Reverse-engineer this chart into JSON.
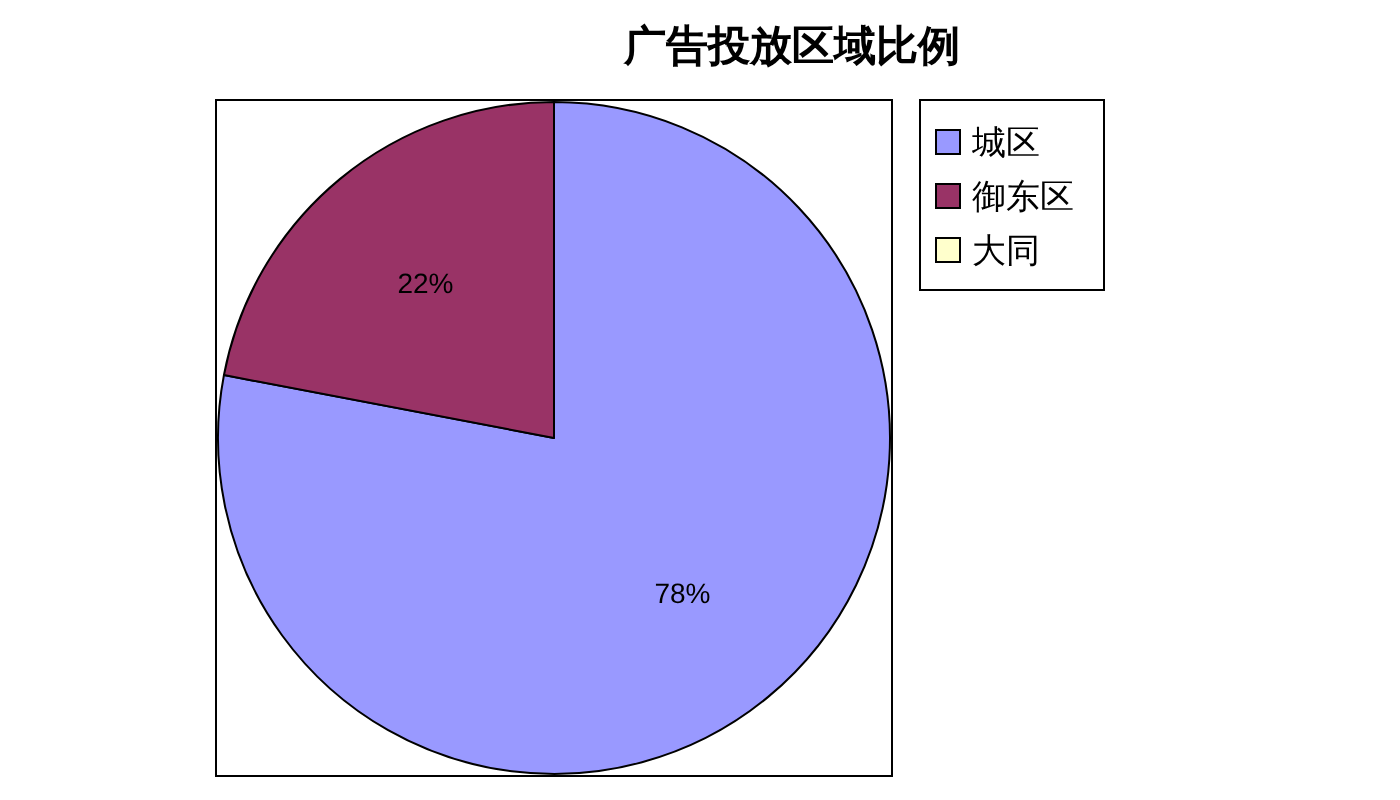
{
  "chart_data": {
    "type": "pie",
    "title": "广告投放区域比例",
    "categories": [
      "城区",
      "御东区",
      "大同"
    ],
    "values": [
      78,
      22,
      0
    ],
    "colors": [
      "#9999ff",
      "#993366",
      "#ffffcc"
    ],
    "value_labels": [
      "78%",
      "22%",
      null
    ],
    "legend": "top right"
  }
}
